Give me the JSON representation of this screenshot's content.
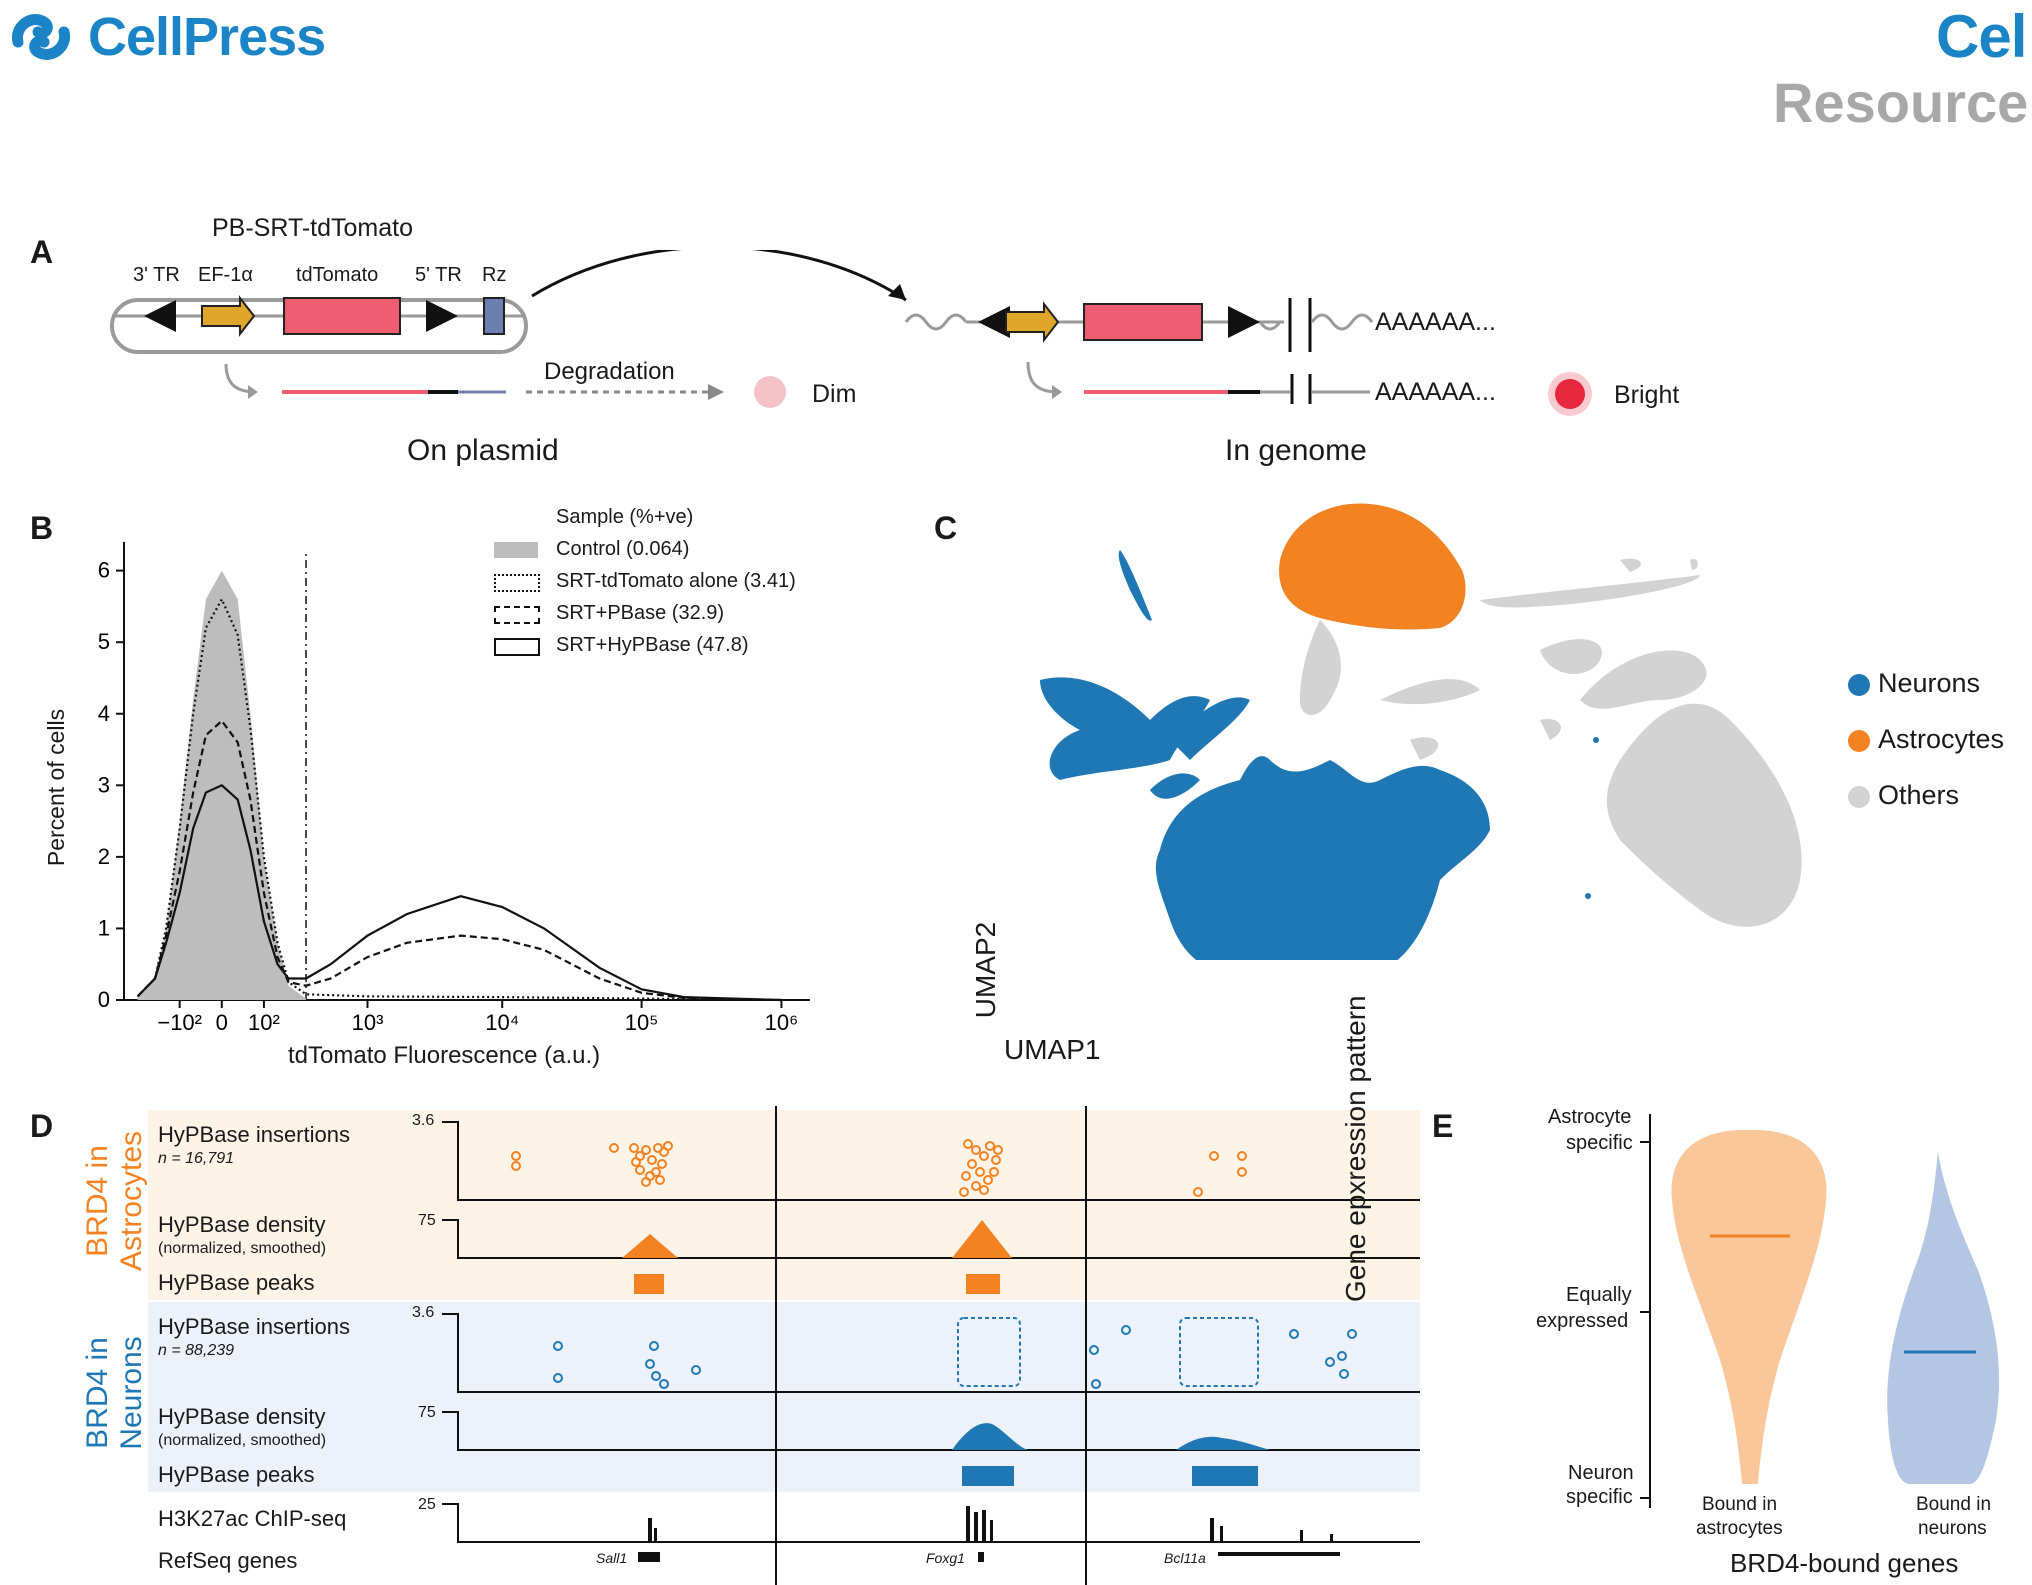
{
  "header": {
    "publisher": "CellPress",
    "journal_short": "Cel",
    "article_type": "Resource"
  },
  "panelA": {
    "letter": "A",
    "construct_name": "PB-SRT-tdTomato",
    "element_labels": [
      "3' TR",
      "EF-1α",
      "tdTomato",
      "5' TR",
      "Rz"
    ],
    "degradation_label": "Degradation",
    "dim_label": "Dim",
    "bright_label": "Bright",
    "polyA_label": "AAAAAA...",
    "plasmid_caption": "On plasmid",
    "genome_caption": "In genome",
    "colors": {
      "tdtomato": "#ee5d72",
      "ef1a": "#e0a62a",
      "rz": "#6d7fb0",
      "dim": "#f3c3c9",
      "bright": "#e8283f"
    }
  },
  "panelB": {
    "letter": "B",
    "legend_title": "Sample (%+ve)",
    "legend": [
      "Control (0.064)",
      "SRT-tdTomato alone (3.41)",
      "SRT+PBase (32.9)",
      "SRT+HyPBase (47.8)"
    ],
    "chart_data": {
      "type": "area",
      "xlabel": "tdTomato Fluorescence (a.u.)",
      "ylabel": "Percent of cells",
      "x_scale": "biexponential",
      "x_ticks": [
        "−10²",
        "0",
        "10²",
        "10³",
        "10⁴",
        "10⁵",
        "10⁶"
      ],
      "y_ticks": [
        "0",
        "1",
        "2",
        "3",
        "4",
        "5",
        "6"
      ],
      "ylim": [
        0,
        6.4
      ],
      "gate_line": "dash-dot",
      "series": [
        {
          "name": "Control (0.064)",
          "style": "filled-gray",
          "x": [
            -300,
            -200,
            -150,
            -100,
            -60,
            -30,
            0,
            30,
            60,
            100,
            150,
            200,
            300
          ],
          "y": [
            0.05,
            0.3,
            1.0,
            2.5,
            4.2,
            5.6,
            6.0,
            5.6,
            4.0,
            2.0,
            0.8,
            0.2,
            0.02
          ]
        },
        {
          "name": "SRT-tdTomato alone (3.41)",
          "style": "dotted",
          "x": [
            -300,
            -200,
            -150,
            -100,
            -60,
            -30,
            0,
            30,
            60,
            100,
            150,
            200,
            300,
            1000,
            10000,
            100000,
            1000000
          ],
          "y": [
            0.05,
            0.3,
            1.0,
            2.4,
            4.0,
            5.2,
            5.6,
            5.1,
            3.8,
            2.0,
            0.8,
            0.25,
            0.08,
            0.05,
            0.04,
            0.02,
            0.0
          ]
        },
        {
          "name": "SRT+PBase (32.9)",
          "style": "dashed",
          "x": [
            -300,
            -200,
            -150,
            -100,
            -60,
            -30,
            0,
            30,
            60,
            100,
            150,
            200,
            300,
            500,
            1000,
            2000,
            5000,
            10000,
            20000,
            50000,
            100000,
            200000,
            1000000
          ],
          "y": [
            0.05,
            0.3,
            0.9,
            1.8,
            2.9,
            3.7,
            3.9,
            3.6,
            2.8,
            1.5,
            0.6,
            0.25,
            0.2,
            0.3,
            0.6,
            0.8,
            0.9,
            0.85,
            0.7,
            0.3,
            0.1,
            0.03,
            0.0
          ]
        },
        {
          "name": "SRT+HyPBase (47.8)",
          "style": "solid",
          "x": [
            -300,
            -200,
            -150,
            -100,
            -60,
            -30,
            0,
            30,
            60,
            100,
            150,
            200,
            300,
            500,
            1000,
            2000,
            5000,
            10000,
            20000,
            50000,
            100000,
            200000,
            1000000
          ],
          "y": [
            0.05,
            0.3,
            0.8,
            1.5,
            2.4,
            2.9,
            3.0,
            2.8,
            2.1,
            1.1,
            0.5,
            0.3,
            0.3,
            0.5,
            0.9,
            1.2,
            1.45,
            1.3,
            1.0,
            0.45,
            0.15,
            0.04,
            0.0
          ]
        }
      ]
    }
  },
  "panelC": {
    "letter": "C",
    "legend": [
      {
        "label": "Neurons",
        "color": "#1f77b4"
      },
      {
        "label": "Astrocytes",
        "color": "#f28222"
      },
      {
        "label": "Others",
        "color": "#d3d3d3"
      }
    ],
    "xaxis": "UMAP1",
    "yaxis": "UMAP2"
  },
  "panelD": {
    "letter": "D",
    "group1": [
      "BRD4 in",
      "Astrocytes"
    ],
    "group2": [
      "BRD4 in",
      "Neurons"
    ],
    "track_insertions": "HyPBase insertions",
    "n_astro": "n = 16,791",
    "n_neuron": "n = 88,239",
    "track_density": "HyPBase density",
    "density_sub": "(normalized, smoothed)",
    "track_peaks": "HyPBase peaks",
    "track_chip": "H3K27ac ChIP-seq",
    "track_refseq": "RefSeq genes",
    "scale_ins": "3.6",
    "scale_den": "75",
    "scale_chip": "25",
    "genes": [
      "Sall1",
      "Foxg1",
      "Bcl11a"
    ],
    "colors": {
      "astro_bg": "#fdf3e7",
      "neuron_bg": "#edf1f9",
      "orange": "#f28222",
      "blue": "#1f77b4"
    }
  },
  "panelE": {
    "letter": "E",
    "ylabel": "Gene epxression pattern",
    "y_ticks": [
      [
        "Astrocyte",
        "specific"
      ],
      [
        "Equally",
        "expressed"
      ],
      [
        "Neuron",
        "specific"
      ]
    ],
    "categories": [
      [
        "Bound in",
        "astrocytes"
      ],
      [
        "Bound in",
        "neurons"
      ]
    ],
    "xlabel": "BRD4-bound genes",
    "colors": [
      "#f9c79a",
      "#b4c6e4"
    ],
    "median_colors": [
      "#f28222",
      "#1f77b4"
    ],
    "chart_data": {
      "type": "violin",
      "categories": [
        "Bound in astrocytes",
        "Bound in neurons"
      ],
      "y_scale": "Neuron specific (0) to Astrocyte specific (1)",
      "medians": [
        0.72,
        0.4
      ]
    }
  }
}
